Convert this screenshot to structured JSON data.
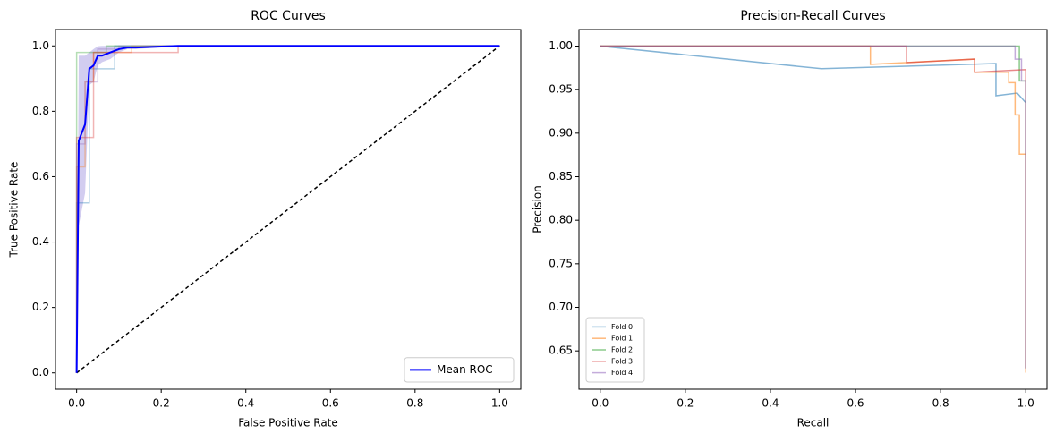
{
  "chart_data": [
    {
      "type": "line",
      "title": "ROC Curves",
      "xlabel": "False Positive Rate",
      "ylabel": "True Positive Rate",
      "xlim": [
        -0.05,
        1.05
      ],
      "ylim": [
        -0.05,
        1.05
      ],
      "xticks": [
        {
          "value": 0,
          "label": "0.0"
        },
        0.2,
        0.4,
        0.6,
        0.8,
        {
          "value": 1,
          "label": "1.0"
        }
      ],
      "yticks": [
        {
          "value": 0,
          "label": "0.0"
        },
        0.2,
        0.4,
        0.6,
        0.8,
        {
          "value": 1,
          "label": "1.0"
        }
      ],
      "legend": "lower right",
      "band": {
        "color": "#6a5acd",
        "alpha": 0.3,
        "x": [
          0,
          0.005,
          0.02,
          0.03,
          0.04,
          0.05,
          0.06,
          0.08,
          0.1,
          0.12,
          0.14,
          0.24,
          1
        ],
        "upper": [
          0,
          0.97,
          0.97,
          0.98,
          0.99,
          0.999,
          1,
          1,
          1,
          1,
          1,
          1,
          1
        ],
        "lower": [
          0,
          0.45,
          0.55,
          0.88,
          0.89,
          0.94,
          0.95,
          0.96,
          0.98,
          0.99,
          0.99,
          1,
          1
        ]
      },
      "series": [
        {
          "color": "#1f77b4",
          "alpha": 0.35,
          "x": [
            0,
            0,
            0.03,
            0.03,
            0.09,
            0.09,
            1
          ],
          "values": [
            0,
            0.52,
            0.52,
            0.93,
            0.93,
            1,
            1
          ]
        },
        {
          "color": "#ff7f0e",
          "alpha": 0.35,
          "x": [
            0,
            0,
            0.02,
            0.02,
            0.04,
            0.04,
            0.13,
            0.13,
            1
          ],
          "values": [
            0,
            0.63,
            0.63,
            0.89,
            0.89,
            0.98,
            0.98,
            1,
            1
          ]
        },
        {
          "color": "#2ca02c",
          "alpha": 0.35,
          "x": [
            0,
            0,
            0.07,
            0.07,
            1
          ],
          "values": [
            0,
            0.98,
            0.98,
            1,
            1
          ]
        },
        {
          "color": "#d62728",
          "alpha": 0.35,
          "x": [
            0,
            0,
            0.04,
            0.04,
            0.24,
            0.24,
            1
          ],
          "values": [
            0,
            0.72,
            0.72,
            0.98,
            0.98,
            1,
            1
          ]
        },
        {
          "color": "#9467bd",
          "alpha": 0.35,
          "x": [
            0,
            0,
            0.02,
            0.02,
            0.05,
            0.05,
            0.1,
            0.1,
            1
          ],
          "values": [
            0,
            0.7,
            0.7,
            0.89,
            0.89,
            0.99,
            0.99,
            1,
            1
          ]
        },
        {
          "color": "#000000",
          "dash": true,
          "x": [
            0,
            1
          ],
          "values": [
            0,
            1
          ]
        },
        {
          "name": "Mean ROC",
          "color": "#0000ff",
          "linewidth": 2,
          "x": [
            0,
            0.005,
            0.02,
            0.03,
            0.04,
            0.05,
            0.06,
            0.08,
            0.1,
            0.12,
            0.14,
            0.24,
            1
          ],
          "values": [
            0,
            0.71,
            0.76,
            0.93,
            0.94,
            0.97,
            0.97,
            0.98,
            0.99,
            0.995,
            0.995,
            1,
            1
          ]
        }
      ]
    },
    {
      "type": "line",
      "title": "Precision-Recall Curves",
      "xlabel": "Recall",
      "ylabel": "Precision",
      "xlim": [
        -0.05,
        1.05
      ],
      "ylim": [
        0.606,
        1.019
      ],
      "xticks": [
        {
          "value": 0,
          "label": "0.0"
        },
        0.2,
        0.4,
        0.6,
        0.8,
        {
          "value": 1,
          "label": "1.0"
        }
      ],
      "yticks": [
        0.65,
        {
          "value": 0.7,
          "label": "0.70"
        },
        0.75,
        {
          "value": 0.8,
          "label": "0.80"
        },
        0.85,
        {
          "value": 0.9,
          "label": "0.90"
        },
        0.95,
        {
          "value": 1,
          "label": "1.00"
        }
      ],
      "legend": "lower left",
      "series": [
        {
          "name": "Fold 0",
          "color": "#1f77b4",
          "alpha": 0.55,
          "x": [
            0,
            0.52,
            0.93,
            0.93,
            0.98,
            1,
            1
          ],
          "values": [
            1,
            0.974,
            0.98,
            0.943,
            0.946,
            0.935,
            0.63
          ]
        },
        {
          "name": "Fold 1",
          "color": "#ff7f0e",
          "alpha": 0.55,
          "x": [
            0,
            0.635,
            0.635,
            0.88,
            0.88,
            0.96,
            0.96,
            0.975,
            0.975,
            0.985,
            0.985,
            1,
            1
          ],
          "values": [
            1,
            1,
            0.979,
            0.985,
            0.97,
            0.97,
            0.958,
            0.958,
            0.921,
            0.921,
            0.876,
            0.876,
            0.625
          ]
        },
        {
          "name": "Fold 2",
          "color": "#2ca02c",
          "alpha": 0.55,
          "x": [
            0,
            0.985,
            0.985,
            1,
            1
          ],
          "values": [
            1,
            1,
            0.96,
            0.96,
            0.63
          ]
        },
        {
          "name": "Fold 3",
          "color": "#d62728",
          "alpha": 0.55,
          "x": [
            0,
            0.72,
            0.72,
            0.88,
            0.88,
            1,
            1
          ],
          "values": [
            1,
            1,
            0.981,
            0.985,
            0.97,
            0.973,
            0.63
          ]
        },
        {
          "name": "Fold 4",
          "color": "#9467bd",
          "alpha": 0.55,
          "x": [
            0,
            0.975,
            0.975,
            0.99,
            0.99,
            1,
            1
          ],
          "values": [
            1,
            1,
            0.985,
            0.985,
            0.96,
            0.96,
            0.63
          ]
        }
      ]
    }
  ]
}
